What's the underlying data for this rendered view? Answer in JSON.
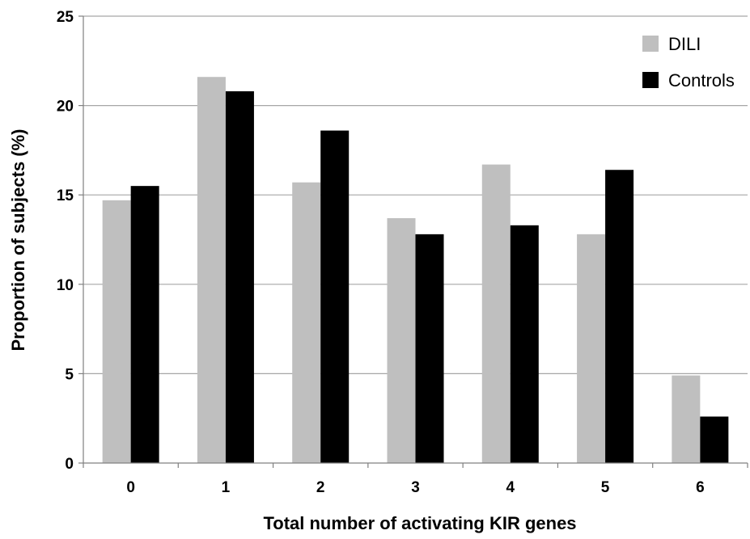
{
  "chart_data": {
    "type": "bar",
    "title": "",
    "xlabel": "Total number of activating KIR genes",
    "ylabel": "Proportion of subjects (%)",
    "categories": [
      "0",
      "1",
      "2",
      "3",
      "4",
      "5",
      "6"
    ],
    "series": [
      {
        "name": "DILI",
        "color": "#bfbfbf",
        "values": [
          14.7,
          21.6,
          15.7,
          13.7,
          16.7,
          12.8,
          4.9
        ]
      },
      {
        "name": "Controls",
        "color": "#000000",
        "values": [
          15.5,
          20.8,
          18.6,
          12.8,
          13.3,
          16.4,
          2.6
        ]
      }
    ],
    "ylim": [
      0,
      25
    ],
    "yticks": [
      "0",
      "5",
      "10",
      "15",
      "20",
      "25"
    ],
    "grid": true,
    "legend_position": "top-right"
  }
}
